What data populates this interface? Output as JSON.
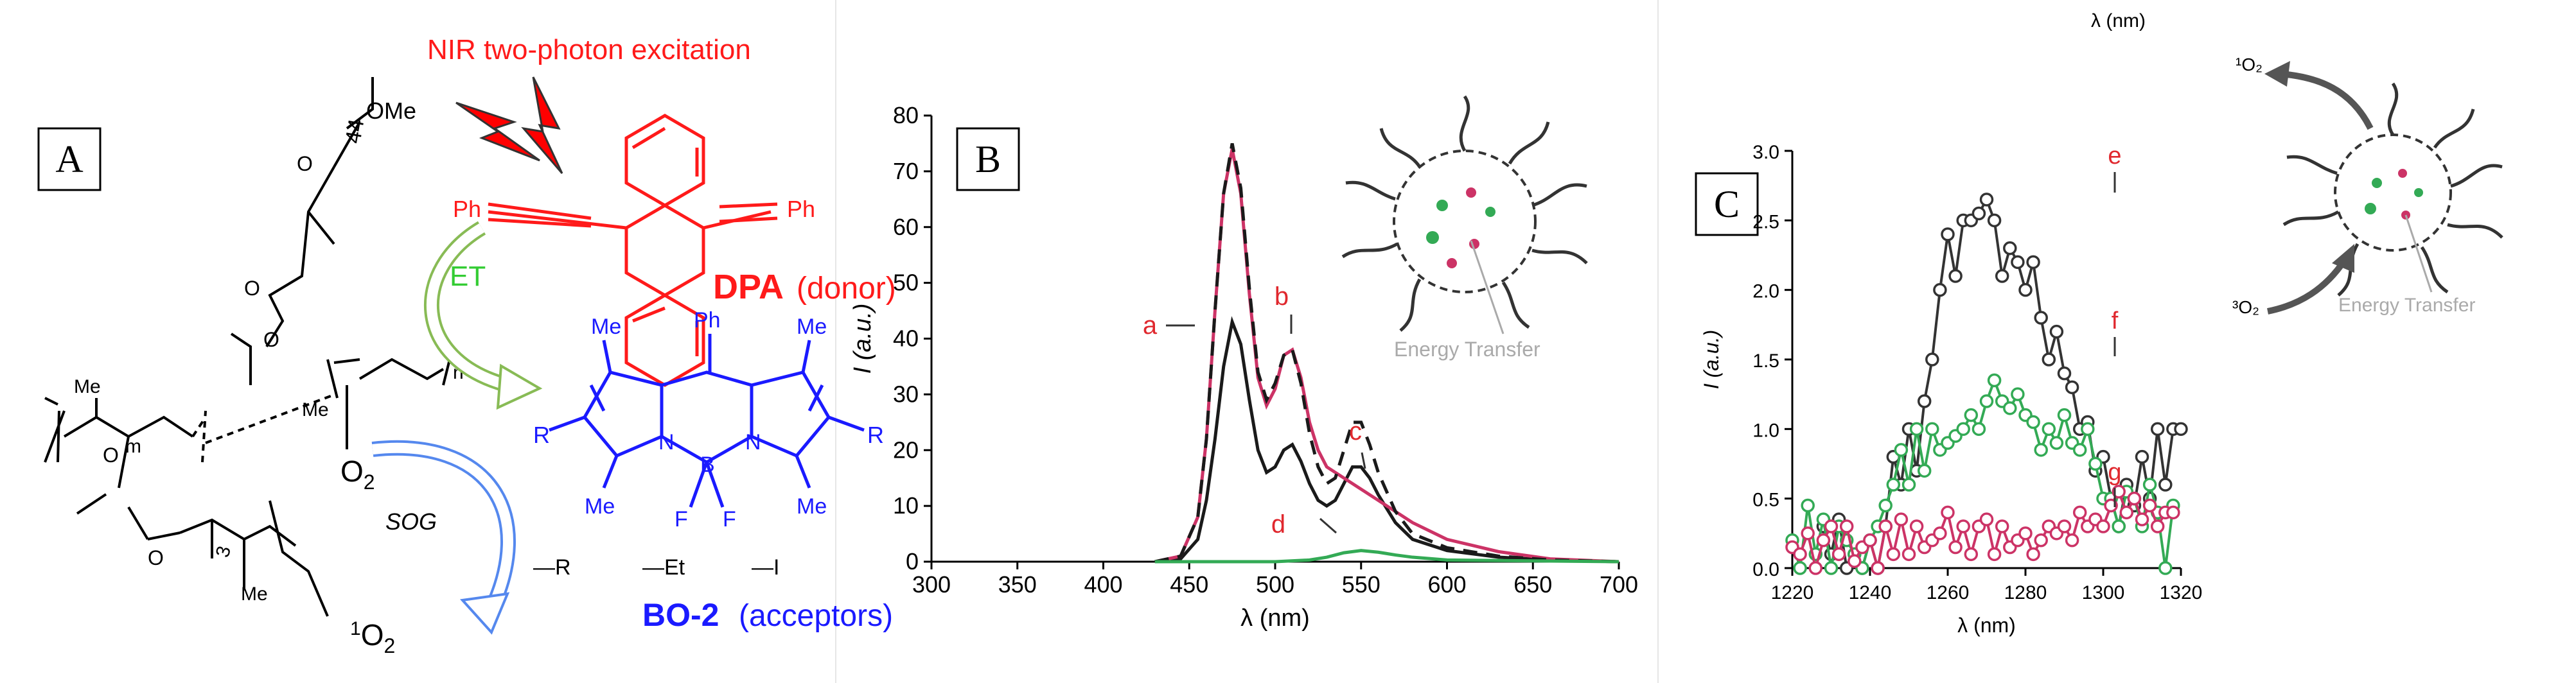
{
  "panel_a": {
    "label": "A",
    "headline": "NIR two-photon excitation",
    "ph_left": "Ph",
    "ph_right": "Ph",
    "ph_top": "Ph",
    "dpa_name": "DPA",
    "dpa_role": "(donor)",
    "et": "ET",
    "o2": "O",
    "o2_sub": "2",
    "sog": "SOG",
    "singlet_pre": "1",
    "singlet_o": "O",
    "singlet_sub": "2",
    "bo_name": "BO-2",
    "bo_role": "(acceptors)",
    "me": "Me",
    "r": "R",
    "n_atom": "N",
    "b_atom": "B",
    "f_atom": "F",
    "ome": "OMe",
    "sub44": "44",
    "sub_m": "m",
    "sub_n": "n",
    "sub3": "3",
    "subst_r": "—R",
    "subst_et": "—Et",
    "subst_i": "—I",
    "colors": {
      "dpa": "#ff1a1a",
      "bo": "#1a1aff",
      "et": "#33cc33",
      "lightning": "#ff0000"
    }
  },
  "panel_b": {
    "label": "B",
    "annotations": {
      "a": "a",
      "b": "b",
      "c": "c",
      "d": "d"
    },
    "inset_text": "Energy Transfer"
  },
  "panel_c": {
    "label": "C",
    "top_label": "λ (nm)",
    "annotations": {
      "e": "e",
      "f": "f",
      "g": "g"
    },
    "inset_text": "Energy Transfer",
    "o2_singlet": "¹O₂",
    "o2_triplet": "³O₂"
  },
  "chart_data": [
    {
      "type": "line",
      "panel": "B",
      "xlabel": "λ (nm)",
      "ylabel": "I (a.u.)",
      "xlim": [
        300,
        700
      ],
      "ylim": [
        0,
        80
      ],
      "xticks": [
        300,
        350,
        400,
        450,
        500,
        550,
        600,
        650,
        700
      ],
      "yticks": [
        0,
        10,
        20,
        30,
        40,
        50,
        60,
        70,
        80
      ],
      "grid": false,
      "series": [
        {
          "name": "a",
          "color": "#1a1a1a",
          "dash": "none",
          "x": [
            430,
            445,
            455,
            460,
            465,
            470,
            475,
            480,
            485,
            490,
            495,
            500,
            505,
            510,
            515,
            520,
            525,
            530,
            535,
            540,
            545,
            550,
            555,
            560,
            570,
            580,
            600,
            630,
            660,
            700
          ],
          "y": [
            0,
            0.5,
            4,
            11,
            22,
            35,
            43,
            39,
            29,
            20,
            16,
            17,
            20,
            21,
            18,
            14,
            11,
            10,
            11,
            14,
            17,
            17,
            15,
            12,
            7,
            4,
            2,
            0.8,
            0.3,
            0
          ]
        },
        {
          "name": "b",
          "color": "#cc3366",
          "dash": "none",
          "x": [
            430,
            445,
            455,
            460,
            465,
            470,
            475,
            480,
            485,
            490,
            495,
            500,
            505,
            510,
            515,
            520,
            525,
            530,
            540,
            550,
            560,
            570,
            580,
            600,
            630,
            660,
            700
          ],
          "y": [
            0,
            1,
            8,
            22,
            45,
            66,
            74,
            66,
            48,
            33,
            28,
            31,
            37,
            38,
            33,
            25,
            20,
            17,
            15,
            13,
            11,
            9,
            7,
            4,
            1.8,
            0.5,
            0
          ]
        },
        {
          "name": "c",
          "color": "#1a1a1a",
          "dash": "dashed",
          "x": [
            430,
            445,
            455,
            460,
            465,
            470,
            475,
            480,
            485,
            490,
            495,
            500,
            505,
            510,
            515,
            520,
            525,
            530,
            535,
            540,
            545,
            550,
            555,
            560,
            570,
            580,
            600,
            630,
            660,
            700
          ],
          "y": [
            0,
            1,
            8,
            22,
            45,
            66,
            75,
            67,
            49,
            34,
            29,
            32,
            37,
            38,
            32,
            23,
            17,
            14,
            15,
            20,
            25,
            25,
            21,
            16,
            9,
            5,
            2.5,
            1,
            0.3,
            0
          ]
        },
        {
          "name": "d",
          "color": "#33aa55",
          "dash": "none",
          "x": [
            430,
            500,
            520,
            530,
            540,
            550,
            560,
            570,
            580,
            600,
            700
          ],
          "y": [
            0,
            0,
            0.3,
            0.8,
            1.6,
            2,
            1.7,
            1.2,
            0.8,
            0.3,
            0
          ]
        }
      ]
    },
    {
      "type": "line",
      "panel": "C",
      "xlabel": "λ (nm)",
      "ylabel": "I (a.u.)",
      "xlim": [
        1220,
        1320
      ],
      "ylim": [
        0,
        3.0
      ],
      "xticks": [
        1220,
        1240,
        1260,
        1280,
        1300,
        1320
      ],
      "yticks": [
        0,
        0.5,
        1.0,
        1.5,
        2.0,
        2.5,
        3.0
      ],
      "grid": false,
      "series": [
        {
          "name": "e",
          "color": "#333333",
          "x": [
            1228,
            1230,
            1232,
            1234,
            1236,
            1238,
            1240,
            1242,
            1244,
            1246,
            1248,
            1250,
            1252,
            1254,
            1256,
            1258,
            1260,
            1262,
            1264,
            1266,
            1268,
            1270,
            1272,
            1274,
            1276,
            1278,
            1280,
            1282,
            1284,
            1286,
            1288,
            1290,
            1292,
            1294,
            1296,
            1298,
            1300,
            1302,
            1304,
            1306,
            1308,
            1310,
            1312,
            1314,
            1316,
            1318,
            1320
          ],
          "y": [
            0.3,
            0.1,
            0.35,
            0.0,
            0.1,
            0.0,
            0.2,
            0.0,
            0.3,
            0.8,
            0.6,
            1.0,
            0.7,
            1.2,
            1.5,
            2.0,
            2.4,
            2.1,
            2.5,
            2.5,
            2.55,
            2.65,
            2.5,
            2.1,
            2.3,
            2.2,
            2.0,
            2.2,
            1.8,
            1.5,
            1.7,
            1.4,
            1.3,
            1.0,
            1.05,
            0.7,
            0.8,
            0.5,
            0.3,
            0.6,
            0.45,
            0.8,
            0.5,
            1.0,
            0.6,
            1.0,
            1.0
          ]
        },
        {
          "name": "f",
          "color": "#33aa55",
          "x": [
            1220,
            1222,
            1224,
            1226,
            1228,
            1230,
            1232,
            1234,
            1236,
            1238,
            1240,
            1242,
            1244,
            1246,
            1248,
            1250,
            1252,
            1254,
            1256,
            1258,
            1260,
            1262,
            1264,
            1266,
            1268,
            1270,
            1272,
            1274,
            1276,
            1278,
            1280,
            1282,
            1284,
            1286,
            1288,
            1290,
            1292,
            1294,
            1296,
            1298,
            1300,
            1302,
            1304,
            1306,
            1308,
            1310,
            1312,
            1314,
            1316,
            1318
          ],
          "y": [
            0.2,
            0.0,
            0.45,
            0.1,
            0.35,
            0.0,
            0.3,
            0.2,
            0.1,
            0.0,
            0.2,
            0.3,
            0.45,
            0.6,
            0.85,
            0.6,
            1.0,
            0.7,
            1.0,
            0.85,
            0.9,
            0.95,
            1.0,
            1.1,
            1.0,
            1.2,
            1.35,
            1.2,
            1.15,
            1.25,
            1.1,
            1.05,
            0.85,
            1.0,
            0.9,
            1.1,
            0.9,
            0.85,
            1.0,
            0.75,
            0.5,
            0.5,
            0.3,
            0.55,
            0.5,
            0.3,
            0.6,
            0.4,
            0.0,
            0.45
          ]
        },
        {
          "name": "g",
          "color": "#cc3366",
          "x": [
            1220,
            1222,
            1224,
            1226,
            1228,
            1230,
            1232,
            1234,
            1236,
            1238,
            1240,
            1242,
            1244,
            1246,
            1248,
            1250,
            1252,
            1254,
            1256,
            1258,
            1260,
            1262,
            1264,
            1266,
            1268,
            1270,
            1272,
            1274,
            1276,
            1278,
            1280,
            1282,
            1284,
            1286,
            1288,
            1290,
            1292,
            1294,
            1296,
            1298,
            1300,
            1302,
            1304,
            1306,
            1308,
            1310,
            1312,
            1314,
            1316,
            1318
          ],
          "y": [
            0.15,
            0.1,
            0.25,
            0.0,
            0.2,
            0.3,
            0.1,
            0.3,
            0.05,
            0.15,
            0.2,
            0.0,
            0.3,
            0.1,
            0.35,
            0.1,
            0.3,
            0.15,
            0.2,
            0.25,
            0.4,
            0.15,
            0.3,
            0.1,
            0.3,
            0.35,
            0.1,
            0.3,
            0.15,
            0.2,
            0.25,
            0.1,
            0.2,
            0.3,
            0.25,
            0.3,
            0.2,
            0.4,
            0.3,
            0.35,
            0.3,
            0.45,
            0.55,
            0.4,
            0.5,
            0.35,
            0.45,
            0.3,
            0.4,
            0.4
          ]
        }
      ]
    }
  ]
}
